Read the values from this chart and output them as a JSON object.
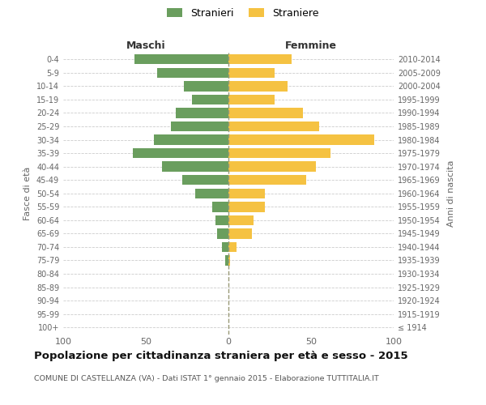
{
  "age_groups": [
    "100+",
    "95-99",
    "90-94",
    "85-89",
    "80-84",
    "75-79",
    "70-74",
    "65-69",
    "60-64",
    "55-59",
    "50-54",
    "45-49",
    "40-44",
    "35-39",
    "30-34",
    "25-29",
    "20-24",
    "15-19",
    "10-14",
    "5-9",
    "0-4"
  ],
  "birth_years": [
    "≤ 1914",
    "1915-1919",
    "1920-1924",
    "1925-1929",
    "1930-1934",
    "1935-1939",
    "1940-1944",
    "1945-1949",
    "1950-1954",
    "1955-1959",
    "1960-1964",
    "1965-1969",
    "1970-1974",
    "1975-1979",
    "1980-1984",
    "1985-1989",
    "1990-1994",
    "1995-1999",
    "2000-2004",
    "2005-2009",
    "2010-2014"
  ],
  "maschi": [
    0,
    0,
    0,
    0,
    0,
    2,
    4,
    7,
    8,
    10,
    20,
    28,
    40,
    58,
    45,
    35,
    32,
    22,
    27,
    43,
    57
  ],
  "femmine": [
    0,
    0,
    0,
    0,
    0,
    1,
    5,
    14,
    15,
    22,
    22,
    47,
    53,
    62,
    88,
    55,
    45,
    28,
    36,
    28,
    38
  ],
  "color_maschi": "#6a9e5e",
  "color_femmine": "#f5c242",
  "title": "Popolazione per cittadinanza straniera per età e sesso - 2015",
  "subtitle": "COMUNE DI CASTELLANZA (VA) - Dati ISTAT 1° gennaio 2015 - Elaborazione TUTTITALIA.IT",
  "ylabel_left": "Fasce di età",
  "ylabel_right": "Anni di nascita",
  "xlabel_left": "Maschi",
  "xlabel_right": "Femmine",
  "legend_maschi": "Stranieri",
  "legend_femmine": "Straniere",
  "xlim": 100,
  "background_color": "#ffffff",
  "grid_color": "#cccccc"
}
